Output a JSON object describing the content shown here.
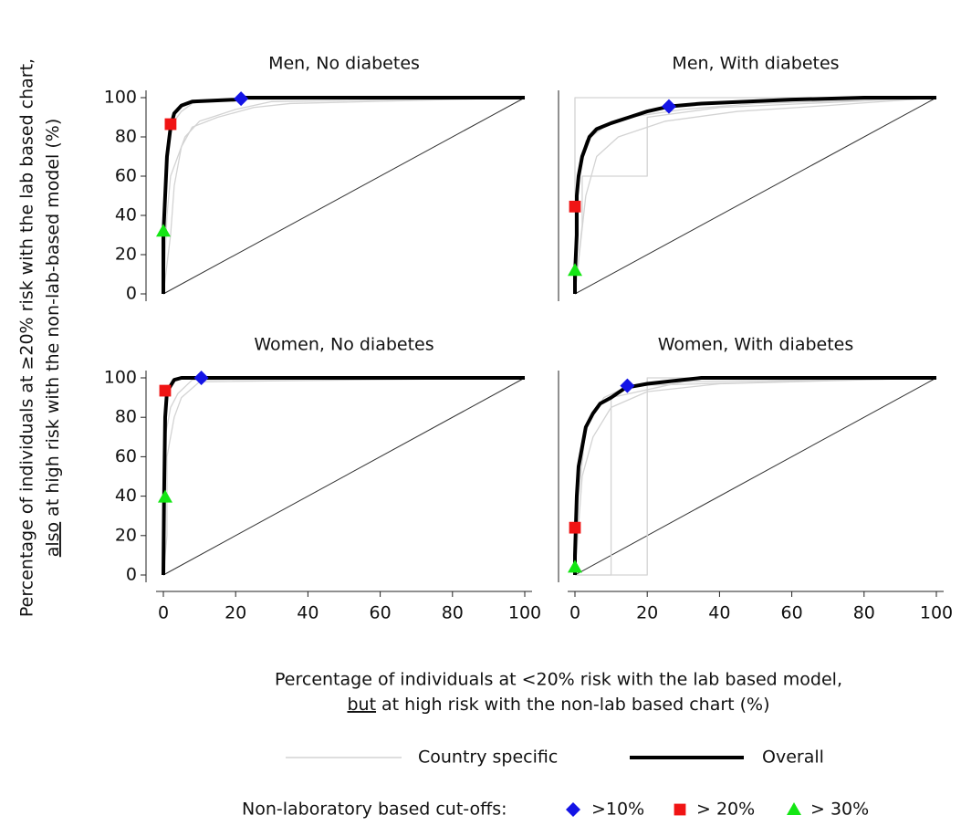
{
  "ylabel": {
    "line1": "Percentage of individuals at ≥20%  risk with the lab based chart,",
    "line2_underlined": "also",
    "line2": "at high risk with the non-lab-based model (%)"
  },
  "xlabel": {
    "line1": "Percentage of individuals at <20% risk with the lab based model,",
    "line2_underlined": "but",
    "line2": "at high risk with the non-lab based chart   (%)"
  },
  "line_legend": [
    {
      "name": "Country specific",
      "color": "#d3d3d3"
    },
    {
      "name": "Overall",
      "color": "#000000"
    }
  ],
  "marker_legend": {
    "title": "Non-laboratory based cut-offs:",
    "entries": [
      {
        "name": ">10%",
        "color": "#1414e6",
        "shape": "diamond"
      },
      {
        "name": "> 20%",
        "color": "#f01414",
        "shape": "square"
      },
      {
        "name": "> 30%",
        "color": "#14e614",
        "shape": "triangle"
      }
    ]
  },
  "chart_data": [
    {
      "type": "line",
      "title": "Men, No diabetes",
      "xlim": [
        0,
        100
      ],
      "ylim": [
        0,
        100
      ],
      "yticks": [
        0,
        20,
        40,
        60,
        80,
        100
      ],
      "country": [
        {
          "x": [
            0,
            1,
            2,
            4,
            6,
            10,
            20,
            30,
            100
          ],
          "values": [
            0,
            40,
            60,
            70,
            80,
            88,
            94,
            98,
            100
          ]
        },
        {
          "x": [
            0,
            2,
            3,
            5,
            8,
            15,
            25,
            35,
            100
          ],
          "values": [
            0,
            30,
            55,
            75,
            85,
            90,
            95,
            97,
            100
          ]
        },
        {
          "x": [
            0,
            0.5,
            1,
            3,
            5,
            8,
            12,
            100
          ],
          "values": [
            0,
            50,
            75,
            88,
            93,
            97,
            99,
            100
          ]
        }
      ],
      "overall": {
        "x": [
          0,
          0,
          0.5,
          1,
          2,
          3,
          5,
          8,
          20,
          22,
          100
        ],
        "values": [
          0,
          30,
          50,
          70,
          85,
          92,
          96,
          98,
          99,
          100,
          100
        ]
      },
      "cutoffs": [
        {
          "x": 21.5,
          "y": 99.5
        },
        {
          "x": 2,
          "y": 86.5
        },
        {
          "x": 0,
          "y": 32
        }
      ]
    },
    {
      "type": "line",
      "title": "Men, With diabetes",
      "xlim": [
        0,
        100
      ],
      "ylim": [
        0,
        100
      ],
      "country": [
        {
          "x": [
            0,
            2,
            2,
            20,
            20,
            40,
            100
          ],
          "values": [
            0,
            35,
            60,
            60,
            90,
            95,
            100
          ]
        },
        {
          "x": [
            0,
            0,
            5,
            10,
            20,
            35,
            60,
            100
          ],
          "values": [
            0,
            100,
            100,
            100,
            100,
            100,
            100,
            100
          ]
        },
        {
          "x": [
            0,
            3,
            6,
            12,
            25,
            45,
            70,
            100
          ],
          "values": [
            0,
            50,
            70,
            80,
            88,
            93,
            96,
            100
          ]
        },
        {
          "x": [
            0,
            1,
            3,
            8,
            15,
            30,
            50,
            100
          ],
          "values": [
            0,
            60,
            78,
            85,
            90,
            94,
            97,
            100
          ]
        }
      ],
      "overall": {
        "x": [
          0,
          0,
          0.5,
          0.5,
          1,
          2,
          4,
          6,
          10,
          15,
          20,
          26,
          35,
          60,
          80,
          100
        ],
        "values": [
          0,
          10,
          30,
          50,
          60,
          70,
          80,
          84,
          87,
          90,
          93,
          95.5,
          97,
          99,
          100,
          100
        ]
      },
      "cutoffs": [
        {
          "x": 26,
          "y": 95.5
        },
        {
          "x": 0,
          "y": 44.5
        },
        {
          "x": 0,
          "y": 12
        }
      ]
    },
    {
      "type": "line",
      "title": "Women, No diabetes",
      "xlim": [
        0,
        100
      ],
      "ylim": [
        0,
        100
      ],
      "xticks": [
        0,
        20,
        40,
        60,
        80,
        100
      ],
      "yticks": [
        0,
        20,
        40,
        60,
        80,
        100
      ],
      "country": [
        {
          "x": [
            0,
            1,
            1,
            3,
            5,
            10,
            100
          ],
          "values": [
            0,
            20,
            60,
            80,
            90,
            98,
            100
          ]
        },
        {
          "x": [
            0,
            0.5,
            2,
            4,
            8,
            100
          ],
          "values": [
            0,
            70,
            85,
            92,
            99,
            100
          ]
        }
      ],
      "overall": {
        "x": [
          0,
          0.2,
          0.5,
          1,
          3,
          5,
          100
        ],
        "values": [
          0,
          40,
          80,
          93,
          99,
          100,
          100
        ]
      },
      "cutoffs": [
        {
          "x": 10.5,
          "y": 100
        },
        {
          "x": 0.5,
          "y": 93.5
        },
        {
          "x": 0.5,
          "y": 39.5
        }
      ]
    },
    {
      "type": "line",
      "title": "Women, With diabetes",
      "xlim": [
        0,
        100
      ],
      "ylim": [
        0,
        100
      ],
      "xticks": [
        0,
        20,
        40,
        60,
        80,
        100
      ],
      "country": [
        {
          "x": [
            0,
            20,
            20,
            40,
            100
          ],
          "values": [
            0,
            0,
            100,
            100,
            100
          ]
        },
        {
          "x": [
            0,
            10,
            10,
            30,
            100
          ],
          "values": [
            0,
            0,
            90,
            98,
            100
          ]
        },
        {
          "x": [
            0,
            2,
            5,
            10,
            20,
            40,
            100
          ],
          "values": [
            0,
            50,
            70,
            85,
            93,
            97,
            100
          ]
        },
        {
          "x": [
            0,
            1,
            3,
            8,
            15,
            55,
            100
          ],
          "values": [
            0,
            40,
            75,
            90,
            96,
            98,
            100
          ]
        }
      ],
      "overall": {
        "x": [
          0,
          0,
          0.5,
          1,
          2,
          3,
          5,
          7,
          10,
          14,
          20,
          30,
          35,
          100
        ],
        "values": [
          0,
          10,
          40,
          55,
          65,
          75,
          82,
          87,
          90,
          95,
          97,
          99,
          100,
          100
        ]
      },
      "cutoffs": [
        {
          "x": 14.5,
          "y": 96
        },
        {
          "x": 0,
          "y": 24
        },
        {
          "x": 0,
          "y": 4
        }
      ]
    }
  ]
}
